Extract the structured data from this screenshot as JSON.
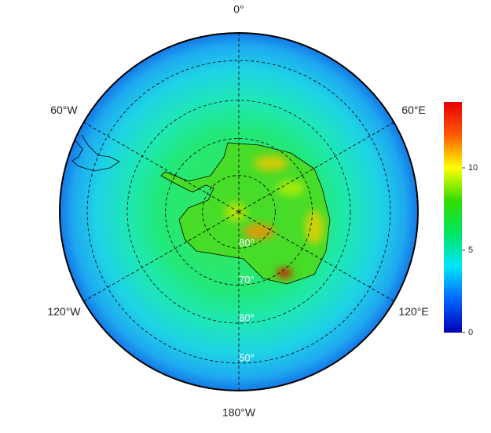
{
  "map": {
    "longitudes": [
      {
        "value": 0,
        "label": "0°"
      },
      {
        "value": 60,
        "label": "60°E"
      },
      {
        "value": 120,
        "label": "120°E"
      },
      {
        "value": 180,
        "label": "180°W"
      },
      {
        "value": -120,
        "label": "120°W"
      },
      {
        "value": -60,
        "label": "60°W"
      }
    ],
    "latitudes": [
      {
        "value": 80,
        "label": "80°"
      },
      {
        "value": 70,
        "label": "70°"
      },
      {
        "value": 60,
        "label": "60°"
      },
      {
        "value": 50,
        "label": "50°"
      }
    ]
  },
  "colorbar": {
    "lim": [
      0,
      14
    ],
    "ticks": [
      0,
      5,
      10
    ],
    "colors": [
      "#0000b4",
      "#0064ff",
      "#00e6ff",
      "#00e664",
      "#32dc00",
      "#ffff00",
      "#ff5a00",
      "#e60000"
    ]
  }
}
